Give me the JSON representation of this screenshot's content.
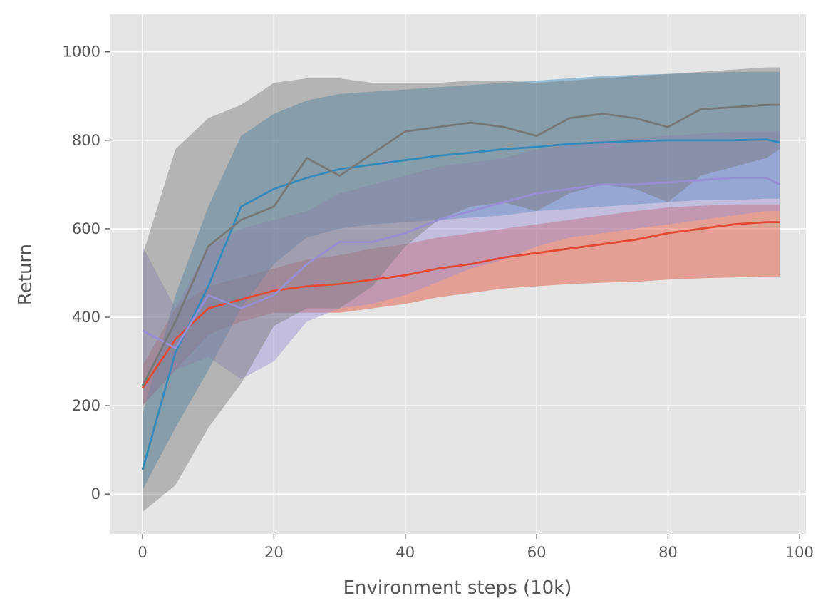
{
  "chart_data": {
    "type": "line",
    "title": "",
    "xlabel": "Environment steps (10k)",
    "ylabel": "Return",
    "xlim": [
      -5,
      101
    ],
    "ylim": [
      -90,
      1085
    ],
    "xticks": [
      0,
      20,
      40,
      60,
      80,
      100
    ],
    "yticks": [
      0,
      200,
      400,
      600,
      800,
      1000
    ],
    "grid": true,
    "legend": "none",
    "x": [
      0,
      5,
      10,
      15,
      20,
      25,
      30,
      35,
      40,
      45,
      50,
      55,
      60,
      65,
      70,
      75,
      80,
      85,
      90,
      95,
      97
    ],
    "series": [
      {
        "name": "red",
        "color": "#E24A33",
        "mean": [
          240,
          350,
          420,
          440,
          460,
          470,
          475,
          485,
          495,
          510,
          520,
          535,
          545,
          555,
          565,
          575,
          590,
          600,
          610,
          615,
          615
        ],
        "lower": [
          200,
          280,
          360,
          390,
          410,
          410,
          410,
          420,
          430,
          445,
          455,
          465,
          470,
          475,
          478,
          480,
          485,
          488,
          490,
          492,
          492
        ],
        "upper": [
          290,
          420,
          470,
          490,
          510,
          530,
          540,
          555,
          565,
          580,
          590,
          600,
          610,
          620,
          630,
          640,
          648,
          652,
          655,
          655,
          655
        ]
      },
      {
        "name": "blue",
        "color": "#348ABD",
        "mean": [
          55,
          320,
          470,
          650,
          690,
          715,
          735,
          745,
          755,
          765,
          772,
          780,
          785,
          792,
          795,
          798,
          800,
          800,
          800,
          802,
          795
        ],
        "lower": [
          10,
          150,
          280,
          420,
          520,
          580,
          600,
          610,
          615,
          620,
          625,
          630,
          640,
          645,
          650,
          655,
          660,
          665,
          665,
          668,
          668
        ],
        "upper": [
          180,
          450,
          650,
          810,
          860,
          890,
          905,
          910,
          915,
          920,
          925,
          930,
          935,
          940,
          945,
          948,
          950,
          952,
          955,
          955,
          955
        ]
      },
      {
        "name": "purple",
        "color": "#988ED5",
        "mean": [
          370,
          330,
          450,
          420,
          450,
          520,
          570,
          570,
          590,
          620,
          640,
          660,
          680,
          690,
          700,
          700,
          705,
          710,
          715,
          715,
          700
        ],
        "lower": [
          200,
          280,
          310,
          260,
          300,
          390,
          420,
          430,
          450,
          480,
          510,
          530,
          560,
          580,
          590,
          600,
          610,
          620,
          630,
          640,
          640
        ],
        "upper": [
          560,
          420,
          560,
          600,
          620,
          640,
          680,
          700,
          720,
          740,
          750,
          760,
          780,
          790,
          800,
          805,
          810,
          815,
          820,
          820,
          820
        ]
      },
      {
        "name": "gray",
        "color": "#777777",
        "mean": [
          245,
          390,
          560,
          620,
          650,
          760,
          720,
          770,
          820,
          830,
          840,
          830,
          810,
          850,
          860,
          850,
          830,
          870,
          875,
          880,
          880
        ],
        "lower": [
          -40,
          20,
          150,
          250,
          380,
          420,
          420,
          470,
          560,
          620,
          650,
          660,
          640,
          680,
          700,
          690,
          660,
          720,
          740,
          760,
          780
        ],
        "upper": [
          540,
          780,
          850,
          880,
          930,
          940,
          940,
          930,
          930,
          930,
          935,
          935,
          930,
          935,
          940,
          945,
          950,
          955,
          960,
          965,
          965
        ]
      }
    ]
  }
}
